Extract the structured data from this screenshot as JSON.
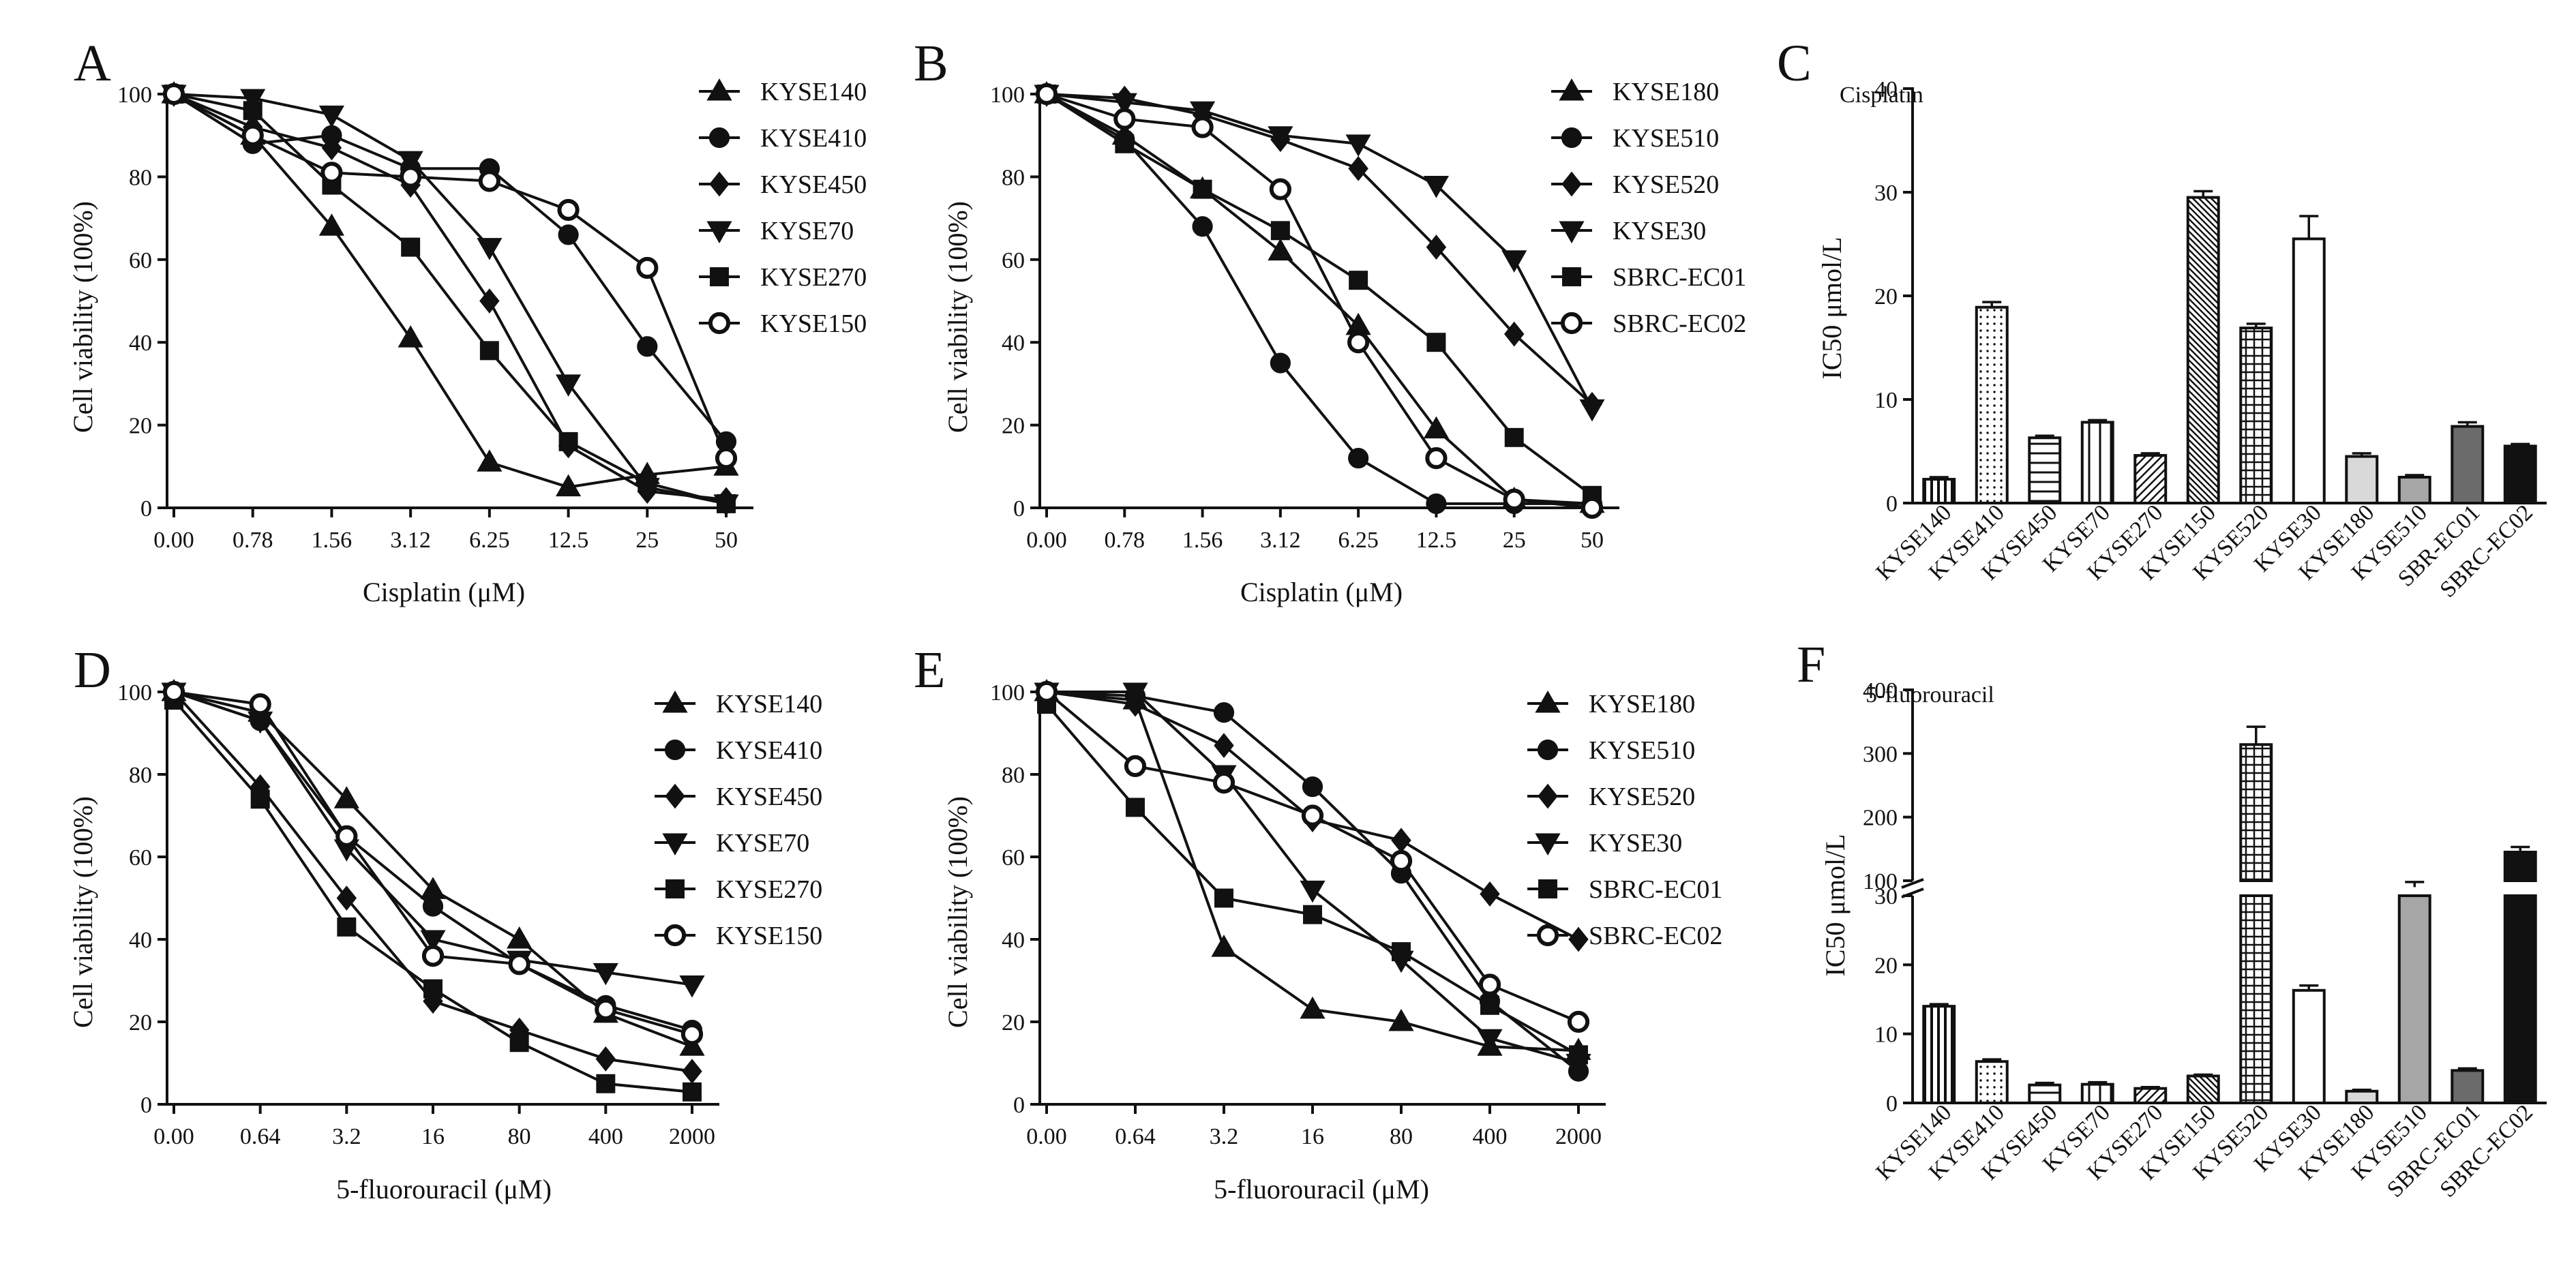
{
  "figure_title": "",
  "chart_data": [
    {
      "type": "line",
      "panel": "A",
      "xlabel": "Cisplatin (μM)",
      "ylabel": "Cell viability (100%)",
      "categories": [
        "0.00",
        "0.78",
        "1.56",
        "3.12",
        "6.25",
        "12.5",
        "25",
        "50"
      ],
      "yticks": [
        "0",
        "20",
        "40",
        "60",
        "80",
        "100"
      ],
      "ylim": [
        0,
        100
      ],
      "legend_position": "top-right",
      "series": [
        {
          "name": "KYSE140",
          "marker": "triangle-up",
          "values": [
            100,
            90,
            68,
            41,
            11,
            5,
            8,
            10
          ]
        },
        {
          "name": "KYSE410",
          "marker": "circle",
          "values": [
            100,
            88,
            90,
            82,
            82,
            66,
            39,
            16
          ]
        },
        {
          "name": "KYSE450",
          "marker": "diamond",
          "values": [
            100,
            92,
            87,
            78,
            50,
            15,
            4,
            2
          ]
        },
        {
          "name": "KYSE70",
          "marker": "triangle-down",
          "values": [
            100,
            99,
            95,
            84,
            63,
            30,
            5,
            1
          ]
        },
        {
          "name": "KYSE270",
          "marker": "square",
          "values": [
            100,
            96,
            78,
            63,
            38,
            16,
            6,
            1
          ]
        },
        {
          "name": "KYSE150",
          "marker": "circle-open",
          "values": [
            100,
            90,
            81,
            80,
            79,
            72,
            58,
            12
          ]
        }
      ]
    },
    {
      "type": "line",
      "panel": "B",
      "xlabel": "Cisplatin (μM)",
      "ylabel": "Cell viability (100%)",
      "categories": [
        "0.00",
        "0.78",
        "1.56",
        "3.12",
        "6.25",
        "12.5",
        "25",
        "50"
      ],
      "yticks": [
        "0",
        "20",
        "40",
        "60",
        "80",
        "100"
      ],
      "ylim": [
        0,
        100
      ],
      "legend_position": "top-right",
      "series": [
        {
          "name": "KYSE180",
          "marker": "triangle-up",
          "values": [
            100,
            90,
            77,
            62,
            44,
            19,
            2,
            1
          ]
        },
        {
          "name": "KYSE510",
          "marker": "circle",
          "values": [
            100,
            89,
            68,
            35,
            12,
            1,
            1,
            1
          ]
        },
        {
          "name": "KYSE520",
          "marker": "diamond",
          "values": [
            100,
            99,
            95,
            89,
            82,
            63,
            42,
            25
          ]
        },
        {
          "name": "KYSE30",
          "marker": "triangle-down",
          "values": [
            100,
            98,
            96,
            90,
            88,
            78,
            60,
            24
          ]
        },
        {
          "name": "SBRC-EC01",
          "marker": "square",
          "values": [
            100,
            88,
            77,
            67,
            55,
            40,
            17,
            3
          ]
        },
        {
          "name": "SBRC-EC02",
          "marker": "circle-open",
          "values": [
            100,
            94,
            92,
            77,
            40,
            12,
            2,
            0
          ]
        }
      ]
    },
    {
      "type": "bar",
      "panel": "C",
      "annotation": "Cisplatin",
      "ylabel": "IC50  μmol/L",
      "categories": [
        "KYSE140",
        "KYSE410",
        "KYSE450",
        "KYSE70",
        "KYSE270",
        "KYSE150",
        "KYSE520",
        "KYSE30",
        "KYSE180",
        "KYSE510",
        "SBR-EC01",
        "SBRC-EC02"
      ],
      "values": [
        2.3,
        18.9,
        6.3,
        7.8,
        4.6,
        29.5,
        16.9,
        25.5,
        4.5,
        2.5,
        7.4,
        5.5
      ],
      "errors": [
        0.2,
        0.5,
        0.2,
        0.2,
        0.2,
        0.6,
        0.4,
        2.2,
        0.3,
        0.2,
        0.4,
        0.2
      ],
      "yticks": [
        "0",
        "10",
        "20",
        "30",
        "40"
      ],
      "ylim": [
        0,
        40
      ],
      "fill_patterns": [
        "vertical",
        "dots",
        "horizontal",
        "vertical-wide",
        "diagonal",
        "diagonal-dense",
        "grid",
        "white",
        "lightgray",
        "midgray",
        "darkgray",
        "black"
      ]
    },
    {
      "type": "line",
      "panel": "D",
      "xlabel": "5-fluorouracil (μM)",
      "ylabel": "Cell viability (100%)",
      "categories": [
        "0.00",
        "0.64",
        "3.2",
        "16",
        "80",
        "400",
        "2000"
      ],
      "yticks": [
        "0",
        "20",
        "40",
        "60",
        "80",
        "100"
      ],
      "ylim": [
        0,
        100
      ],
      "legend_position": "top-right",
      "series": [
        {
          "name": "KYSE140",
          "marker": "triangle-up",
          "values": [
            100,
            95,
            74,
            52,
            40,
            22,
            14
          ]
        },
        {
          "name": "KYSE410",
          "marker": "circle",
          "values": [
            100,
            93,
            65,
            48,
            34,
            24,
            18
          ]
        },
        {
          "name": "KYSE450",
          "marker": "diamond",
          "values": [
            100,
            77,
            50,
            25,
            18,
            11,
            8
          ]
        },
        {
          "name": "KYSE70",
          "marker": "triangle-down",
          "values": [
            100,
            93,
            62,
            40,
            35,
            32,
            29
          ]
        },
        {
          "name": "KYSE270",
          "marker": "square",
          "values": [
            98,
            74,
            43,
            28,
            15,
            5,
            3
          ]
        },
        {
          "name": "KYSE150",
          "marker": "circle-open",
          "values": [
            100,
            97,
            65,
            36,
            34,
            23,
            17
          ]
        }
      ]
    },
    {
      "type": "line",
      "panel": "E",
      "xlabel": "5-fluorouracil (μM)",
      "ylabel": "Cell viability (100%)",
      "categories": [
        "0.00",
        "0.64",
        "3.2",
        "16",
        "80",
        "400",
        "2000"
      ],
      "yticks": [
        "0",
        "20",
        "40",
        "60",
        "80",
        "100"
      ],
      "ylim": [
        0,
        100
      ],
      "legend_position": "top-right",
      "series": [
        {
          "name": "KYSE180",
          "marker": "triangle-up",
          "values": [
            100,
            98,
            38,
            23,
            20,
            14,
            13
          ]
        },
        {
          "name": "KYSE510",
          "marker": "circle",
          "values": [
            100,
            99,
            95,
            77,
            56,
            25,
            8
          ]
        },
        {
          "name": "KYSE520",
          "marker": "diamond",
          "values": [
            100,
            97,
            87,
            69,
            64,
            51,
            40
          ]
        },
        {
          "name": "KYSE30",
          "marker": "triangle-down",
          "values": [
            100,
            100,
            80,
            52,
            35,
            16,
            10
          ]
        },
        {
          "name": "SBRC-EC01",
          "marker": "square",
          "values": [
            97,
            72,
            50,
            46,
            37,
            24,
            12
          ]
        },
        {
          "name": "SBRC-EC02",
          "marker": "circle-open",
          "values": [
            100,
            82,
            78,
            70,
            59,
            29,
            20
          ]
        }
      ]
    },
    {
      "type": "bar",
      "panel": "F",
      "annotation": "5-fluorouracil",
      "ylabel": "IC50  μmol/L",
      "categories": [
        "KYSE140",
        "KYSE410",
        "KYSE450",
        "KYSE70",
        "KYSE270",
        "KYSE150",
        "KYSE520",
        "KYSE30",
        "KYSE180",
        "KYSE510",
        "SBRC-EC01",
        "SBRC-EC02"
      ],
      "values": [
        14,
        6,
        2.6,
        2.7,
        2.1,
        3.9,
        314,
        16.3,
        1.7,
        90,
        4.7,
        145
      ],
      "errors": [
        0.3,
        0.3,
        0.3,
        0.3,
        0.2,
        0.2,
        28,
        0.7,
        0.2,
        8,
        0.3,
        8
      ],
      "broken_axis": {
        "lower_range": [
          0,
          30
        ],
        "upper_range": [
          100,
          400
        ]
      },
      "yticks_lower": [
        "0",
        "10",
        "20",
        "30"
      ],
      "yticks_upper": [
        "100",
        "200",
        "300",
        "400"
      ],
      "fill_patterns": [
        "vertical",
        "dots",
        "horizontal",
        "vertical-wide",
        "diagonal",
        "diagonal-dense",
        "grid",
        "white",
        "lightgray",
        "midgray",
        "darkgray",
        "black"
      ]
    }
  ]
}
